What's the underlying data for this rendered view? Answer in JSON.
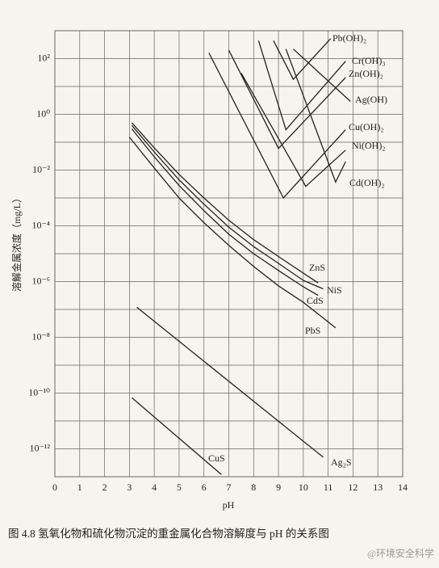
{
  "chart_data": {
    "type": "line",
    "y_label": "溶解金属浓度（mg/L）",
    "x_label": "pH",
    "caption": "图 4.8   氢氧化物和硫化物沉淀的重金属化合物溶解度与 pH 的关系图",
    "watermark": "@环境安全科学",
    "yscale": "log",
    "grid": true,
    "xlim": [
      0,
      14
    ],
    "xticks": [
      0,
      1,
      2,
      3,
      4,
      5,
      6,
      7,
      8,
      9,
      10,
      11,
      12,
      13,
      14
    ],
    "ylim": [
      1e-13,
      1000
    ],
    "yticks": [
      {
        "value": 100,
        "label": "10²"
      },
      {
        "value": 1,
        "label": "10⁰"
      },
      {
        "value": 0.01,
        "label": "10⁻²"
      },
      {
        "value": 0.0001,
        "label": "10⁻⁴"
      },
      {
        "value": 1e-06,
        "label": "10⁻⁶"
      },
      {
        "value": 1e-08,
        "label": "10⁻⁸"
      },
      {
        "value": 1e-10,
        "label": "10⁻¹⁰"
      },
      {
        "value": 1e-12,
        "label": "10⁻¹²"
      }
    ],
    "yminor": [
      1000,
      10,
      0.1,
      0.001,
      1e-05,
      1e-07,
      1e-09,
      1e-11,
      1e-13
    ],
    "color": "#222222",
    "series": [
      {
        "name": "Pb(OH)₂",
        "x": [
          8.8,
          9.6,
          11.1
        ],
        "values": [
          440,
          18,
          520
        ]
      },
      {
        "name": "Cr(OH)₃",
        "x": [
          8.2,
          9.3,
          11.7
        ],
        "values": [
          440,
          0.28,
          80
        ]
      },
      {
        "name": "Zn(OH)₂",
        "x": [
          7.0,
          9.0,
          11.7
        ],
        "values": [
          200,
          0.06,
          21
        ]
      },
      {
        "name": "Ag(OH)",
        "x": [
          9.6,
          11.9
        ],
        "values": [
          220,
          2.9
        ]
      },
      {
        "name": "Cu(OH)₂",
        "x": [
          6.2,
          9.2,
          11.7
        ],
        "values": [
          160,
          0.001,
          0.28
        ]
      },
      {
        "name": "Ni(OH)₂",
        "x": [
          7.5,
          10.1,
          11.7
        ],
        "values": [
          30,
          0.0026,
          0.052
        ]
      },
      {
        "name": "Cd(OH)₂",
        "x": [
          9.3,
          11.3,
          11.7
        ],
        "values": [
          220,
          0.0037,
          0.02
        ]
      },
      {
        "name": "ZnS",
        "x": [
          3.1,
          4,
          5,
          6,
          7,
          8,
          9,
          10,
          10.6
        ],
        "values": [
          0.5,
          0.063,
          0.007,
          0.001,
          0.00016,
          3.2e-05,
          7.9e-06,
          2e-06,
          8.9e-07
        ]
      },
      {
        "name": "NiS",
        "x": [
          3.1,
          4,
          5,
          6,
          7,
          8,
          9,
          10,
          10.8
        ],
        "values": [
          0.4,
          0.045,
          0.0045,
          0.0006,
          9e-05,
          1.8e-05,
          4.5e-06,
          1.1e-06,
          5.5e-07
        ]
      },
      {
        "name": "CdS",
        "x": [
          3.1,
          4,
          5,
          6,
          7,
          8,
          9,
          10,
          10.6
        ],
        "values": [
          0.3,
          0.03,
          0.0028,
          0.00035,
          5e-05,
          1e-05,
          2.5e-06,
          6.5e-07,
          3.2e-07
        ]
      },
      {
        "name": "PbS",
        "x": [
          3,
          4,
          5,
          6,
          7,
          8,
          9,
          10,
          11.3
        ],
        "values": [
          0.15,
          0.012,
          0.001,
          0.00013,
          2e-05,
          3.5e-06,
          7e-07,
          1.8e-07,
          2.2e-08
        ]
      },
      {
        "name": "Ag₂S",
        "x": [
          3.3,
          10.8
        ],
        "values": [
          1.2e-07,
          5e-13
        ]
      },
      {
        "name": "CuS",
        "x": [
          3.1,
          6.7
        ],
        "values": [
          6.8e-11,
          1.2e-13
        ]
      }
    ]
  }
}
